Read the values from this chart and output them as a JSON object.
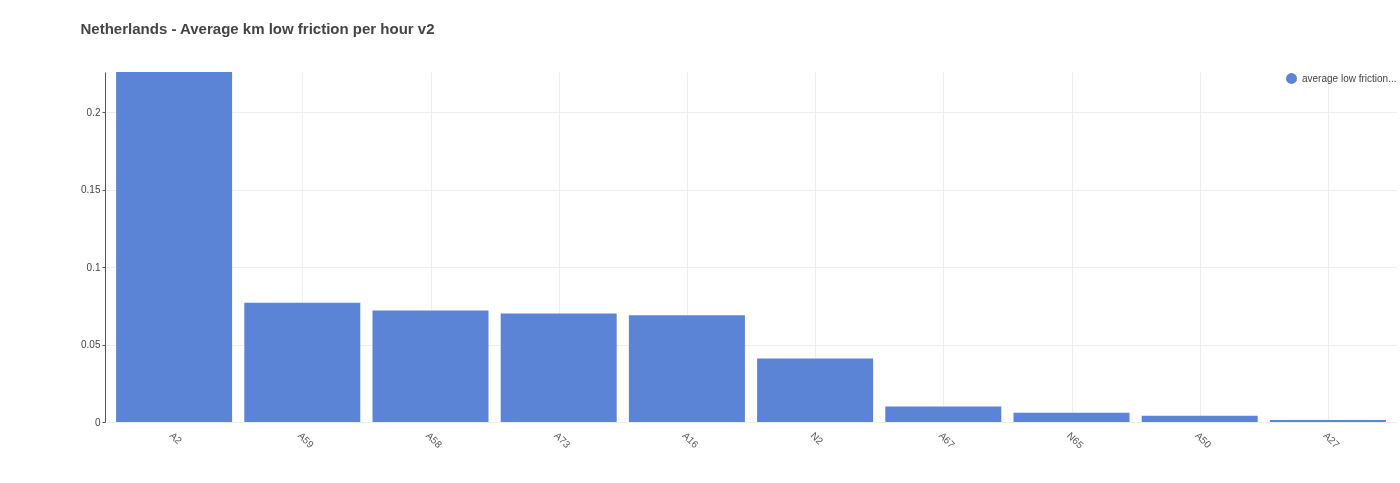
{
  "chart_data": {
    "type": "bar",
    "title": "Netherlands - Average km low friction per hour v2",
    "categories": [
      "A2",
      "A59",
      "A58",
      "A73",
      "A16",
      "N2",
      "A67",
      "N65",
      "A50",
      "A27"
    ],
    "series": [
      {
        "name": "average low friction...",
        "color": "#5b84d6",
        "values": [
          0.226,
          0.077,
          0.072,
          0.07,
          0.069,
          0.041,
          0.01,
          0.006,
          0.004,
          0.0013
        ]
      }
    ],
    "ylim": [
      0,
      0.226
    ],
    "yticks": [
      0,
      0.05,
      0.1,
      0.15,
      0.2
    ],
    "grid": true,
    "legend": "top right"
  }
}
